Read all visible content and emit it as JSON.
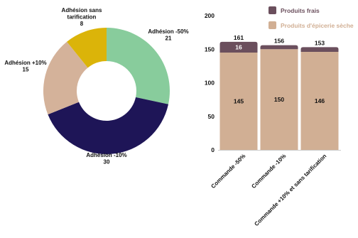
{
  "chart_data": [
    {
      "type": "pie",
      "donut": true,
      "title": "",
      "slices": [
        {
          "label": "Adhésion -50%",
          "value": 21,
          "color": "#88cc9c"
        },
        {
          "label": "Adhésion -10%",
          "value": 30,
          "color": "#1e1557"
        },
        {
          "label": "Adhésion +10%",
          "value": 15,
          "color": "#d4b29a"
        },
        {
          "label": "Adhésion sans tarification",
          "value": 8,
          "color": "#dbb409"
        }
      ]
    },
    {
      "type": "bar",
      "stacked": true,
      "title": "",
      "xlabel": "",
      "ylabel": "",
      "categories": [
        "Commande -50%",
        "Commande -10%",
        "Commande +10% et sans tarification"
      ],
      "series": [
        {
          "name": "Produits d'épicerie sèche",
          "values": [
            145,
            150,
            146
          ],
          "color": "#d1af94"
        },
        {
          "name": "Produits frais",
          "values": [
            16,
            6,
            7
          ],
          "color": "#6b4f5d"
        }
      ],
      "totals": [
        161,
        156,
        153
      ],
      "segment_labels": {
        "Produits d'épicerie sèche": [
          "145",
          "150",
          "146"
        ],
        "Produits frais": [
          "16",
          "",
          ""
        ]
      },
      "ylim": [
        0,
        200
      ],
      "yticks": [
        0,
        50,
        100,
        150,
        200
      ],
      "grid": false,
      "legend_position": "top-right"
    }
  ],
  "legend_text_color": "#ffffff"
}
